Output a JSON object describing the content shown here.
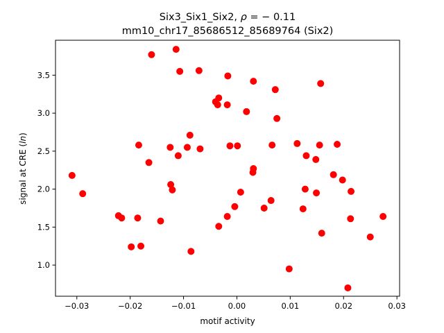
{
  "chart_data": {
    "type": "scatter",
    "title_line1_prefix": "Six3_Six1_Six2, ",
    "title_line1_rho": "ρ",
    "title_line1_suffix": " = − 0.11",
    "title_line2": "mm10_chr17_85686512_85689764 (Six2)",
    "xlabel": "motif activity",
    "ylabel_prefix": "signal at CRE (",
    "ylabel_italic": "ln",
    "ylabel_suffix": ")",
    "xlim": [
      -0.034,
      0.0305
    ],
    "ylim": [
      0.59,
      3.96
    ],
    "xticks": [
      -0.03,
      -0.02,
      -0.01,
      0.0,
      0.01,
      0.02,
      0.03
    ],
    "xtick_labels": [
      "−0.03",
      "−0.02",
      "−0.01",
      "0.00",
      "0.01",
      "0.02",
      "0.03"
    ],
    "yticks": [
      1.0,
      1.5,
      2.0,
      2.5,
      3.0,
      3.5
    ],
    "ytick_labels": [
      "1.0",
      "1.5",
      "2.0",
      "2.5",
      "3.0",
      "3.5"
    ],
    "marker_color": "#ff0000",
    "points": [
      {
        "x": -0.0309,
        "y": 2.18
      },
      {
        "x": -0.0289,
        "y": 1.94
      },
      {
        "x": -0.0222,
        "y": 1.65
      },
      {
        "x": -0.0216,
        "y": 1.62
      },
      {
        "x": -0.0198,
        "y": 1.24
      },
      {
        "x": -0.0186,
        "y": 1.62
      },
      {
        "x": -0.0184,
        "y": 2.58
      },
      {
        "x": -0.018,
        "y": 1.25
      },
      {
        "x": -0.0165,
        "y": 2.35
      },
      {
        "x": -0.016,
        "y": 3.77
      },
      {
        "x": -0.0143,
        "y": 1.58
      },
      {
        "x": -0.0125,
        "y": 2.55
      },
      {
        "x": -0.0124,
        "y": 2.06
      },
      {
        "x": -0.0121,
        "y": 1.99
      },
      {
        "x": -0.0114,
        "y": 3.84
      },
      {
        "x": -0.011,
        "y": 2.44
      },
      {
        "x": -0.0107,
        "y": 3.55
      },
      {
        "x": -0.0093,
        "y": 2.55
      },
      {
        "x": -0.0088,
        "y": 2.71
      },
      {
        "x": -0.0086,
        "y": 1.18
      },
      {
        "x": -0.0071,
        "y": 3.56
      },
      {
        "x": -0.0069,
        "y": 2.53
      },
      {
        "x": -0.004,
        "y": 3.15
      },
      {
        "x": -0.0036,
        "y": 3.11
      },
      {
        "x": -0.0034,
        "y": 3.2
      },
      {
        "x": -0.0034,
        "y": 1.51
      },
      {
        "x": -0.0018,
        "y": 3.11
      },
      {
        "x": -0.0018,
        "y": 1.64
      },
      {
        "x": -0.0017,
        "y": 3.49
      },
      {
        "x": -0.0013,
        "y": 2.57
      },
      {
        "x": -0.0004,
        "y": 1.77
      },
      {
        "x": 0.0001,
        "y": 2.57
      },
      {
        "x": 0.0007,
        "y": 1.96
      },
      {
        "x": 0.0018,
        "y": 3.02
      },
      {
        "x": 0.003,
        "y": 2.22
      },
      {
        "x": 0.0031,
        "y": 2.27
      },
      {
        "x": 0.0031,
        "y": 3.42
      },
      {
        "x": 0.0051,
        "y": 1.75
      },
      {
        "x": 0.0064,
        "y": 1.85
      },
      {
        "x": 0.0066,
        "y": 2.58
      },
      {
        "x": 0.0072,
        "y": 3.31
      },
      {
        "x": 0.0075,
        "y": 2.93
      },
      {
        "x": 0.0098,
        "y": 0.95
      },
      {
        "x": 0.0113,
        "y": 2.6
      },
      {
        "x": 0.0124,
        "y": 1.74
      },
      {
        "x": 0.0128,
        "y": 2.0
      },
      {
        "x": 0.013,
        "y": 2.44
      },
      {
        "x": 0.0148,
        "y": 2.39
      },
      {
        "x": 0.0149,
        "y": 1.95
      },
      {
        "x": 0.0155,
        "y": 2.58
      },
      {
        "x": 0.0157,
        "y": 3.39
      },
      {
        "x": 0.0159,
        "y": 1.42
      },
      {
        "x": 0.0181,
        "y": 2.19
      },
      {
        "x": 0.0188,
        "y": 2.59
      },
      {
        "x": 0.0198,
        "y": 2.12
      },
      {
        "x": 0.0208,
        "y": 0.7
      },
      {
        "x": 0.0213,
        "y": 1.61
      },
      {
        "x": 0.0214,
        "y": 1.97
      },
      {
        "x": 0.025,
        "y": 1.37
      },
      {
        "x": 0.0274,
        "y": 1.64
      }
    ]
  }
}
